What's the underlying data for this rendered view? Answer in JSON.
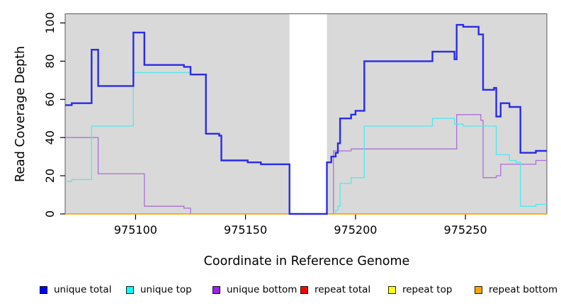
{
  "chart_data": {
    "type": "line",
    "subtype": "step-coverage",
    "step": "post",
    "title": "",
    "xlabel": "Coordinate in Reference Genome",
    "ylabel": "Read Coverage Depth",
    "xlim": [
      975068,
      975287
    ],
    "ylim": [
      0,
      104.8
    ],
    "x_ticks": [
      975100,
      975150,
      975200,
      975250
    ],
    "y_ticks": [
      0,
      20,
      40,
      60,
      80,
      100
    ],
    "grid": false,
    "legend_position": "bottom",
    "plot_bg": "#D9D9D9",
    "masked_region": {
      "x_start": 975170,
      "x_end": 975187,
      "color": "#FFFFFF"
    },
    "draw_order": [
      3,
      4,
      2,
      1,
      5,
      0
    ],
    "series": [
      {
        "name": "unique total",
        "color": "#2B2BE6",
        "legend_color": "#0000FF",
        "width": 2.4,
        "points": [
          [
            975068,
            57
          ],
          [
            975071,
            58
          ],
          [
            975080,
            86
          ],
          [
            975083,
            67
          ],
          [
            975099,
            95
          ],
          [
            975104,
            78
          ],
          [
            975122,
            77
          ],
          [
            975125,
            73
          ],
          [
            975132,
            42
          ],
          [
            975138,
            41
          ],
          [
            975139,
            28
          ],
          [
            975151,
            27
          ],
          [
            975157,
            26
          ],
          [
            975170,
            0
          ],
          [
            975187,
            27
          ],
          [
            975189,
            30
          ],
          [
            975191,
            32
          ],
          [
            975192,
            37
          ],
          [
            975193,
            50
          ],
          [
            975198,
            52
          ],
          [
            975200,
            54
          ],
          [
            975204,
            80
          ],
          [
            975235,
            85
          ],
          [
            975245,
            81
          ],
          [
            975246,
            99
          ],
          [
            975249,
            98
          ],
          [
            975256,
            94
          ],
          [
            975258,
            65
          ],
          [
            975263,
            66
          ],
          [
            975264,
            51
          ],
          [
            975266,
            58
          ],
          [
            975270,
            56
          ],
          [
            975275,
            32
          ],
          [
            975282,
            33
          ],
          [
            975287,
            33
          ]
        ]
      },
      {
        "name": "unique top",
        "color": "#53E7EC",
        "legend_color": "#00FFFF",
        "width": 1.3,
        "points": [
          [
            975068,
            17
          ],
          [
            975071,
            18
          ],
          [
            975080,
            46
          ],
          [
            975099,
            74
          ],
          [
            975125,
            73
          ],
          [
            975132,
            42
          ],
          [
            975138,
            41
          ],
          [
            975139,
            28
          ],
          [
            975151,
            27
          ],
          [
            975157,
            26
          ],
          [
            975170,
            0
          ],
          [
            975187,
            0
          ],
          [
            975191,
            2
          ],
          [
            975192,
            4
          ],
          [
            975193,
            16
          ],
          [
            975198,
            19
          ],
          [
            975204,
            46
          ],
          [
            975235,
            50
          ],
          [
            975245,
            47
          ],
          [
            975249,
            46
          ],
          [
            975264,
            31
          ],
          [
            975270,
            28
          ],
          [
            975273,
            27
          ],
          [
            975275,
            4
          ],
          [
            975282,
            5
          ],
          [
            975287,
            5
          ]
        ]
      },
      {
        "name": "unique bottom",
        "color": "#AC6FD8",
        "legend_color": "#A020F0",
        "width": 1.3,
        "points": [
          [
            975068,
            40
          ],
          [
            975083,
            21
          ],
          [
            975104,
            4
          ],
          [
            975122,
            3
          ],
          [
            975125,
            0
          ],
          [
            975190,
            33
          ],
          [
            975198,
            34
          ],
          [
            975246,
            52
          ],
          [
            975257,
            49
          ],
          [
            975258,
            19
          ],
          [
            975264,
            20
          ],
          [
            975266,
            26
          ],
          [
            975282,
            28
          ],
          [
            975287,
            28
          ]
        ]
      },
      {
        "name": "repeat total",
        "color": "#DD2222",
        "legend_color": "#FF0000",
        "width": 1.2,
        "points": [
          [
            975068,
            0
          ],
          [
            975287,
            0
          ]
        ]
      },
      {
        "name": "repeat top",
        "color": "#EEEE44",
        "legend_color": "#FFFF00",
        "width": 1.2,
        "points": [
          [
            975068,
            0
          ],
          [
            975287,
            0
          ]
        ]
      },
      {
        "name": "repeat bottom",
        "color": "#FFA500",
        "legend_color": "#FFA500",
        "width": 1.6,
        "points": [
          [
            975068,
            0
          ],
          [
            975287,
            0
          ]
        ]
      }
    ]
  }
}
